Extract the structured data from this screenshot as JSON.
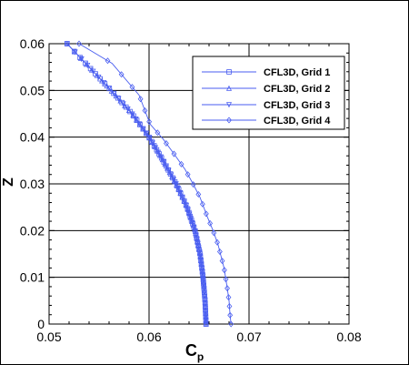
{
  "chart_data": {
    "type": "line",
    "xlabel": "C",
    "xlabel_subscript": "p",
    "ylabel": "Z",
    "xlim": [
      0.05,
      0.08
    ],
    "ylim": [
      0,
      0.06
    ],
    "xticks": [
      "0.05",
      "0.06",
      "0.07",
      "0.08"
    ],
    "yticks": [
      "0",
      "0.01",
      "0.02",
      "0.03",
      "0.04",
      "0.05",
      "0.06"
    ],
    "grid": true,
    "legend_position": "top-right",
    "series_color": "#4a5ef0",
    "series": [
      {
        "name": "CFL3D, Grid 1",
        "marker": "square",
        "x": [
          0.0518,
          0.054,
          0.0562,
          0.0583,
          0.06,
          0.0614,
          0.0627,
          0.0638,
          0.0646,
          0.0651,
          0.0654,
          0.0656,
          0.0657
        ],
        "y": [
          0.06,
          0.055,
          0.05,
          0.045,
          0.04,
          0.035,
          0.03,
          0.025,
          0.02,
          0.015,
          0.01,
          0.005,
          0.0
        ]
      },
      {
        "name": "CFL3D, Grid 2",
        "marker": "triangle",
        "x": [
          0.0518,
          0.054,
          0.0562,
          0.0583,
          0.06,
          0.0614,
          0.0627,
          0.0638,
          0.0646,
          0.0651,
          0.0654,
          0.0656,
          0.0657
        ],
        "y": [
          0.06,
          0.055,
          0.05,
          0.045,
          0.04,
          0.035,
          0.03,
          0.025,
          0.02,
          0.015,
          0.01,
          0.005,
          0.0
        ]
      },
      {
        "name": "CFL3D, Grid 3",
        "marker": "triangle-down",
        "x": [
          0.0518,
          0.054,
          0.0562,
          0.0583,
          0.06,
          0.0614,
          0.0627,
          0.0638,
          0.0646,
          0.0651,
          0.0654,
          0.0656,
          0.0657
        ],
        "y": [
          0.06,
          0.055,
          0.05,
          0.045,
          0.04,
          0.035,
          0.03,
          0.025,
          0.02,
          0.015,
          0.01,
          0.005,
          0.0
        ]
      },
      {
        "name": "CFL3D, Grid 4",
        "marker": "diamond",
        "x": [
          0.053,
          0.0563,
          0.059,
          0.0601,
          0.0614,
          0.0625,
          0.0636,
          0.0644,
          0.0651,
          0.0658,
          0.0664,
          0.0669,
          0.0675,
          0.0678,
          0.068,
          0.0681,
          0.0682
        ],
        "y": [
          0.06,
          0.0558,
          0.049,
          0.0428,
          0.0396,
          0.0364,
          0.0331,
          0.03,
          0.0271,
          0.0231,
          0.02,
          0.017,
          0.012,
          0.008,
          0.005,
          0.002,
          0.0
        ]
      }
    ]
  }
}
